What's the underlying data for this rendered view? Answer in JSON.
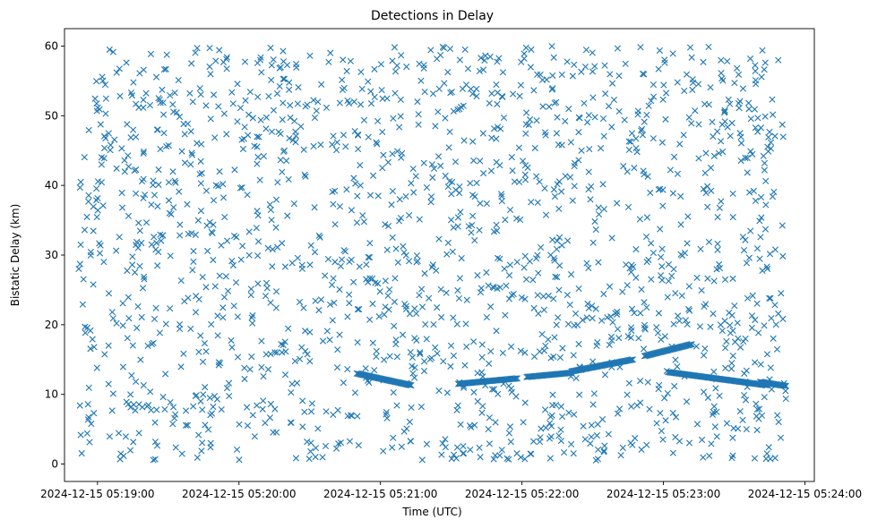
{
  "chart_data": {
    "type": "scatter",
    "title": "Detections in Delay",
    "xlabel": "Time (UTC)",
    "ylabel": "Bistatic Delay (km)",
    "marker": "x",
    "color": "#1f77b4",
    "xlim": [
      "2024-12-15 05:18:46",
      "2024-12-15 05:24:04"
    ],
    "ylim": [
      -2.5,
      62.5
    ],
    "x_ticks": [
      "2024-12-15 05:19:00",
      "2024-12-15 05:20:00",
      "2024-12-15 05:21:00",
      "2024-12-15 05:22:00",
      "2024-12-15 05:23:00",
      "2024-12-15 05:24:00"
    ],
    "y_ticks": [
      0,
      10,
      20,
      30,
      40,
      50,
      60
    ],
    "grid": false,
    "data_range": {
      "x": [
        "2024-12-15 05:18:52",
        "2024-12-15 05:23:52"
      ],
      "y": [
        0.5,
        60
      ]
    },
    "track_segments": [
      {
        "x": [
          "2024-12-15 05:20:50",
          "2024-12-15 05:21:13"
        ],
        "y": [
          13.0,
          11.3
        ]
      },
      {
        "x": [
          "2024-12-15 05:21:11",
          "2024-12-15 05:21:12"
        ],
        "y": [
          11.6,
          11.4
        ]
      },
      {
        "x": [
          "2024-12-15 05:21:33",
          "2024-12-15 05:21:58"
        ],
        "y": [
          11.5,
          12.3
        ]
      },
      {
        "x": [
          "2024-12-15 05:22:02",
          "2024-12-15 05:22:21"
        ],
        "y": [
          12.5,
          13.1
        ]
      },
      {
        "x": [
          "2024-12-15 05:22:21",
          "2024-12-15 05:22:47"
        ],
        "y": [
          13.3,
          15.0
        ]
      },
      {
        "x": [
          "2024-12-15 05:22:52",
          "2024-12-15 05:23:12"
        ],
        "y": [
          15.5,
          17.2
        ]
      },
      {
        "x": [
          "2024-12-15 05:23:02",
          "2024-12-15 05:23:44"
        ],
        "y": [
          13.2,
          11.3
        ]
      },
      {
        "x": [
          "2024-12-15 05:23:41",
          "2024-12-15 05:23:52"
        ],
        "y": [
          11.8,
          11.2
        ]
      }
    ]
  }
}
